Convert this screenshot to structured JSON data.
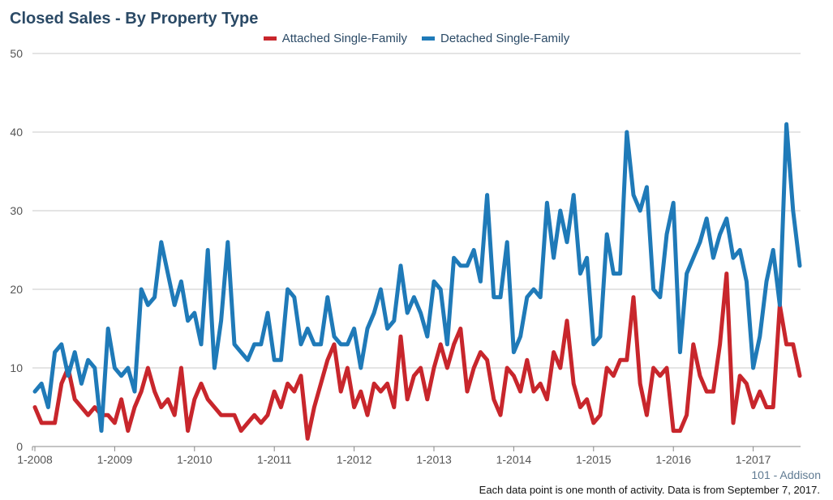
{
  "title": "Closed Sales - By Property Type",
  "area_label": "101 - Addison",
  "footnote": "Each data point is one month of activity. Data is from September 7, 2017.",
  "chart_data": {
    "type": "line",
    "title": "Closed Sales - By Property Type",
    "xlabel": "",
    "ylabel": "",
    "ylim": [
      0,
      50
    ],
    "yticks": [
      0,
      10,
      20,
      30,
      40,
      50
    ],
    "x_start": "1-2008",
    "x_tick_labels": [
      "1-2008",
      "1-2009",
      "1-2010",
      "1-2011",
      "1-2012",
      "1-2013",
      "1-2014",
      "1-2015",
      "1-2016",
      "1-2017"
    ],
    "grid": true,
    "legend_position": "top-center",
    "series": [
      {
        "name": "Attached Single-Family",
        "color": "#c8262c",
        "values": [
          5,
          3,
          3,
          3,
          8,
          10,
          6,
          5,
          4,
          5,
          4,
          4,
          3,
          6,
          2,
          5,
          7,
          10,
          7,
          5,
          6,
          4,
          10,
          2,
          6,
          8,
          6,
          5,
          4,
          4,
          4,
          2,
          3,
          4,
          3,
          4,
          7,
          5,
          8,
          7,
          9,
          1,
          5,
          8,
          11,
          13,
          7,
          10,
          5,
          7,
          4,
          8,
          7,
          8,
          5,
          14,
          6,
          9,
          10,
          6,
          10,
          13,
          10,
          13,
          15,
          7,
          10,
          12,
          11,
          6,
          4,
          10,
          9,
          7,
          11,
          7,
          8,
          6,
          12,
          10,
          16,
          8,
          5,
          6,
          3,
          4,
          10,
          9,
          11,
          11,
          19,
          8,
          4,
          10,
          9,
          10,
          2,
          2,
          4,
          13,
          9,
          7,
          7,
          13,
          22,
          3,
          9,
          8,
          5,
          7,
          5,
          5,
          18,
          13,
          13,
          9
        ]
      },
      {
        "name": "Detached Single-Family",
        "color": "#1f7ab8",
        "values": [
          7,
          8,
          5,
          12,
          13,
          9,
          12,
          8,
          11,
          10,
          2,
          15,
          10,
          9,
          10,
          7,
          20,
          18,
          19,
          26,
          22,
          18,
          21,
          16,
          17,
          13,
          25,
          10,
          16,
          26,
          13,
          12,
          11,
          13,
          13,
          17,
          11,
          11,
          20,
          19,
          13,
          15,
          13,
          13,
          19,
          14,
          13,
          13,
          15,
          10,
          15,
          17,
          20,
          15,
          16,
          23,
          17,
          19,
          17,
          14,
          21,
          20,
          13,
          24,
          23,
          23,
          25,
          21,
          32,
          19,
          19,
          26,
          12,
          14,
          19,
          20,
          19,
          31,
          24,
          30,
          26,
          32,
          22,
          24,
          13,
          14,
          27,
          22,
          22,
          40,
          32,
          30,
          33,
          20,
          19,
          27,
          31,
          12,
          22,
          24,
          26,
          29,
          24,
          27,
          29,
          24,
          25,
          21,
          10,
          14,
          21,
          25,
          18,
          41,
          30,
          23
        ]
      }
    ]
  }
}
